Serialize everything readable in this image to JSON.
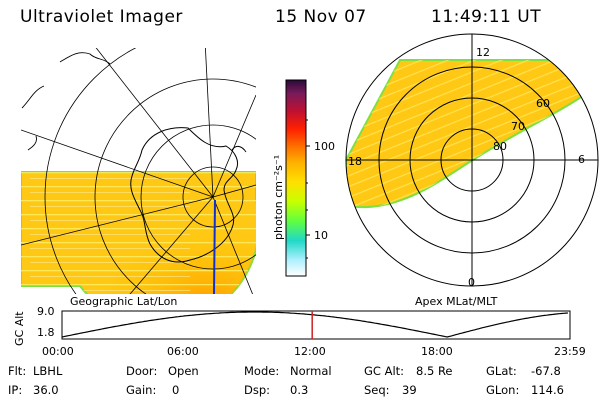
{
  "header": {
    "instrument": "Ultraviolet Imager",
    "date": "15 Nov 07",
    "time": "11:49:11 UT"
  },
  "panels": {
    "left_title": "Geographic Lat/Lon",
    "right_title": "Apex MLat/MLT"
  },
  "colorbar": {
    "label": "photon cm⁻²s⁻¹",
    "tick_100": "100",
    "tick_10": "10",
    "colors": [
      "#2a0a3a",
      "#7a1a5a",
      "#b81030",
      "#ff2000",
      "#ff8000",
      "#ffb000",
      "#ffe000",
      "#c8ff00",
      "#60ff40",
      "#20d0d0",
      "#b0f0ff",
      "#ffffff"
    ]
  },
  "polar": {
    "mlt_labels": {
      "top": "12",
      "right": "6",
      "bottom": "0",
      "left": "18"
    },
    "lat_labels": [
      "60",
      "70",
      "80"
    ]
  },
  "altitude": {
    "axis_label": "GC Alt",
    "y_max": "9.0",
    "y_min": "1.8",
    "time_ticks": [
      "00:00",
      "06:00",
      "12:00",
      "18:00",
      "23:59"
    ],
    "current_marker_hours": 11.82
  },
  "info": {
    "flt_label": "Flt:",
    "flt_value": "LBHL",
    "ip_label": "IP:",
    "ip_value": "36.0",
    "door_label": "Door:",
    "door_value": "Open",
    "gain_label": "Gain:",
    "gain_value": "0",
    "mode_label": "Mode:",
    "mode_value": "Normal",
    "dsp_label": "Dsp:",
    "dsp_value": "0.3",
    "gcalt_label": "GC Alt:",
    "gcalt_value": "8.5 Re",
    "seq_label": "Seq:",
    "seq_value": "39",
    "glat_label": "GLat:",
    "glat_value": "-67.8",
    "glon_label": "GLon:",
    "glon_value": "114.6"
  }
}
